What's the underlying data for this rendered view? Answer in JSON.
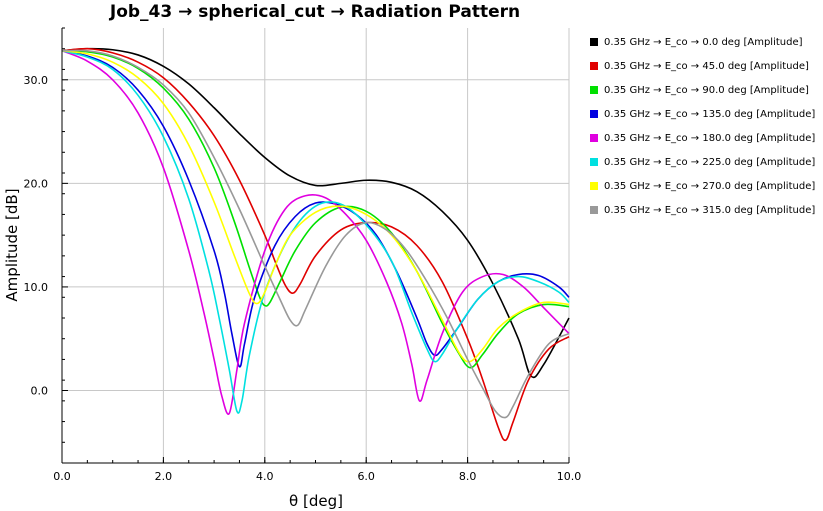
{
  "chart_data": {
    "type": "line",
    "title": "Job_43 → spherical_cut → Radiation Pattern",
    "xlabel": "θ [deg]",
    "ylabel": "Amplitude [dB]",
    "xlim": [
      0,
      10
    ],
    "ylim": [
      -7,
      35
    ],
    "x_ticks": [
      "0.0",
      "2.0",
      "4.0",
      "6.0",
      "8.0",
      "10.0"
    ],
    "y_ticks": [
      "0.0",
      "10.0",
      "20.0",
      "30.0"
    ],
    "grid": true,
    "legend_position": "right",
    "series": [
      {
        "name": "0.35 GHz → E_co → 0.0 deg [Amplitude]",
        "color": "#000000",
        "x": [
          0,
          0.5,
          1,
          1.5,
          2,
          2.5,
          3,
          3.5,
          4,
          4.5,
          5,
          5.5,
          6,
          6.5,
          7,
          7.5,
          8,
          8.5,
          9,
          9.25,
          9.5,
          10
        ],
        "y": [
          32.8,
          33.0,
          32.9,
          32.4,
          31.3,
          29.6,
          27.3,
          24.8,
          22.5,
          20.7,
          19.8,
          20.0,
          20.3,
          20.1,
          19.2,
          17.3,
          14.5,
          10.3,
          5.0,
          1.4,
          2.5,
          7.0
        ]
      },
      {
        "name": "0.35 GHz → E_co → 45.0 deg [Amplitude]",
        "color": "#e00000",
        "x": [
          0,
          0.5,
          1,
          1.5,
          2,
          2.5,
          3,
          3.5,
          4,
          4.2,
          4.4,
          4.55,
          4.7,
          5,
          5.5,
          6,
          6.5,
          7,
          7.5,
          8,
          8.3,
          8.6,
          8.75,
          8.9,
          9.2,
          9.6,
          10
        ],
        "y": [
          32.8,
          33.0,
          32.6,
          31.7,
          30.2,
          27.8,
          24.6,
          20.3,
          15.0,
          12.5,
          10.2,
          9.4,
          10.3,
          13.0,
          15.5,
          16.2,
          15.8,
          14.0,
          10.5,
          5.0,
          1.0,
          -3.5,
          -4.8,
          -3.0,
          1.0,
          4.0,
          5.2
        ]
      },
      {
        "name": "0.35 GHz → E_co → 90.0 deg [Amplitude]",
        "color": "#00e000",
        "x": [
          0,
          0.5,
          1,
          1.5,
          2,
          2.5,
          3,
          3.4,
          3.7,
          3.9,
          4.0,
          4.1,
          4.3,
          4.6,
          5,
          5.5,
          6,
          6.5,
          7,
          7.5,
          7.8,
          8.05,
          8.3,
          8.6,
          9,
          9.5,
          10
        ],
        "y": [
          32.8,
          32.7,
          32.2,
          31.1,
          29.2,
          26.2,
          21.5,
          16.3,
          11.8,
          9.0,
          8.2,
          8.5,
          10.5,
          13.5,
          16.2,
          17.7,
          17.3,
          15.2,
          11.5,
          6.5,
          3.8,
          2.2,
          3.5,
          5.5,
          7.4,
          8.3,
          8.1
        ]
      },
      {
        "name": "0.35 GHz → E_co → 135.0 deg [Amplitude]",
        "color": "#0000e0",
        "x": [
          0,
          0.5,
          1,
          1.5,
          2,
          2.5,
          3,
          3.2,
          3.35,
          3.5,
          3.6,
          3.8,
          4.2,
          4.6,
          5,
          5.4,
          5.8,
          6.2,
          6.6,
          7,
          7.2,
          7.35,
          7.5,
          7.8,
          8.2,
          8.6,
          9,
          9.4,
          9.8,
          10
        ],
        "y": [
          32.8,
          32.3,
          31.2,
          29.0,
          25.5,
          20.3,
          13.5,
          9.5,
          5.5,
          2.3,
          4.5,
          9.0,
          14.0,
          16.8,
          18.1,
          18.0,
          17.0,
          15.0,
          11.5,
          7.0,
          4.5,
          3.4,
          4.0,
          6.0,
          8.8,
          10.5,
          11.2,
          11.1,
          10.0,
          9.0
        ]
      },
      {
        "name": "0.35 GHz → E_co → 180.0 deg [Amplitude]",
        "color": "#e000e0",
        "x": [
          0,
          0.5,
          1,
          1.5,
          2,
          2.5,
          2.8,
          3.0,
          3.15,
          3.3,
          3.45,
          3.6,
          4.0,
          4.4,
          4.8,
          5.2,
          5.6,
          6.0,
          6.4,
          6.7,
          6.9,
          7.05,
          7.2,
          7.5,
          7.9,
          8.3,
          8.7,
          9.1,
          9.5,
          10
        ],
        "y": [
          32.8,
          31.8,
          30.0,
          26.8,
          21.5,
          13.5,
          7.5,
          3.0,
          -0.5,
          -2.2,
          2.0,
          6.5,
          13.5,
          17.5,
          18.8,
          18.6,
          17.0,
          14.5,
          10.5,
          6.5,
          2.5,
          -1.0,
          1.0,
          5.5,
          9.5,
          11.0,
          11.2,
          10.0,
          8.0,
          5.5
        ]
      },
      {
        "name": "0.35 GHz → E_co → 225.0 deg [Amplitude]",
        "color": "#00e0e0",
        "x": [
          0,
          0.5,
          1,
          1.5,
          2,
          2.5,
          2.9,
          3.1,
          3.3,
          3.45,
          3.55,
          3.7,
          4.0,
          4.5,
          5,
          5.5,
          6,
          6.5,
          6.9,
          7.2,
          7.35,
          7.5,
          7.8,
          8.2,
          8.6,
          9,
          9.4,
          9.8,
          10
        ],
        "y": [
          32.8,
          32.2,
          31.0,
          28.5,
          24.5,
          18.5,
          11.5,
          7.0,
          2.0,
          -2.0,
          -1.0,
          3.5,
          9.5,
          15.0,
          17.8,
          18.0,
          16.0,
          12.5,
          7.5,
          4.0,
          2.8,
          3.5,
          6.0,
          8.8,
          10.5,
          11.0,
          10.5,
          9.5,
          8.5
        ]
      },
      {
        "name": "0.35 GHz → E_co → 270.0 deg [Amplitude]",
        "color": "#ffff00",
        "x": [
          0,
          0.5,
          1,
          1.5,
          2,
          2.5,
          3,
          3.4,
          3.7,
          3.85,
          4.0,
          4.2,
          4.5,
          5,
          5.5,
          6,
          6.5,
          7,
          7.5,
          7.85,
          8.05,
          8.3,
          8.6,
          9,
          9.5,
          10
        ],
        "y": [
          32.8,
          32.5,
          31.7,
          30.2,
          27.7,
          23.7,
          18.2,
          13.0,
          9.3,
          8.4,
          9.5,
          12.0,
          15.0,
          17.2,
          17.8,
          17.0,
          15.0,
          11.5,
          6.8,
          3.5,
          2.8,
          4.0,
          6.0,
          7.5,
          8.5,
          8.3
        ]
      },
      {
        "name": "0.35 GHz → E_co → 315.0 deg [Amplitude]",
        "color": "#999999",
        "x": [
          0,
          0.5,
          1,
          1.5,
          2,
          2.5,
          3,
          3.5,
          4,
          4.3,
          4.5,
          4.65,
          4.8,
          5.2,
          5.6,
          6.0,
          6.4,
          6.8,
          7.2,
          7.6,
          8.0,
          8.3,
          8.55,
          8.75,
          8.9,
          9.2,
          9.6,
          10
        ],
        "y": [
          32.8,
          32.8,
          32.3,
          31.2,
          29.5,
          26.8,
          22.5,
          17.5,
          12.0,
          8.8,
          6.8,
          6.3,
          7.8,
          12.0,
          15.0,
          16.2,
          15.5,
          13.5,
          10.5,
          7.0,
          3.0,
          0.2,
          -2.0,
          -2.6,
          -1.5,
          1.5,
          4.5,
          5.5
        ]
      }
    ]
  }
}
